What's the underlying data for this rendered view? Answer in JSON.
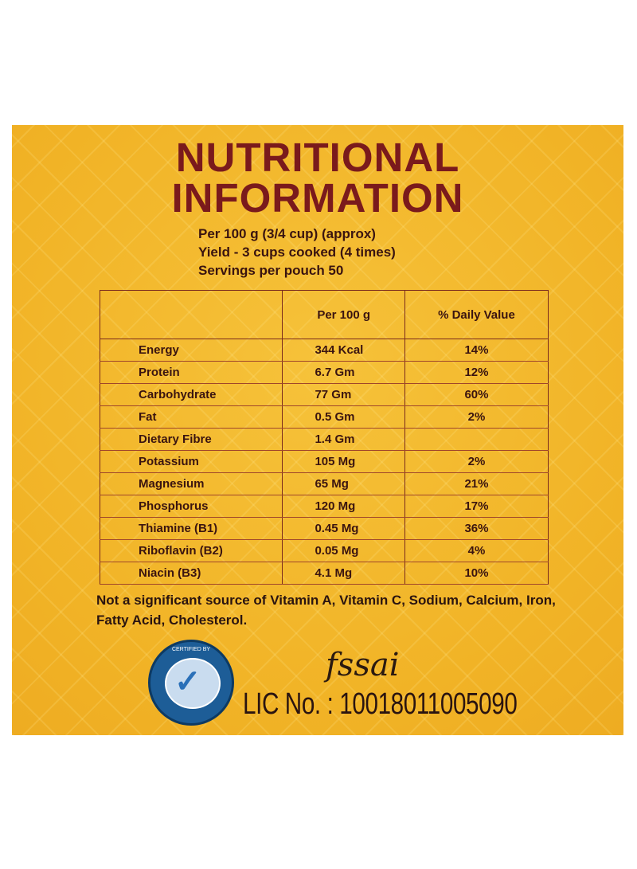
{
  "title_line1": "NUTRITIONAL",
  "title_line2": "INFORMATION",
  "meta": {
    "per": "Per 100 g (3/4 cup) (approx)",
    "yield": "Yield - 3 cups cooked (4 times)",
    "servings": "Servings per pouch 50"
  },
  "table": {
    "headers": [
      "",
      "Per 100 g",
      "% Daily Value"
    ],
    "rows": [
      [
        "Energy",
        "344 Kcal",
        "14%"
      ],
      [
        "Protein",
        "6.7 Gm",
        "12%"
      ],
      [
        "Carbohydrate",
        "77 Gm",
        "60%"
      ],
      [
        "Fat",
        "0.5 Gm",
        "2%"
      ],
      [
        "Dietary Fibre",
        "1.4 Gm",
        ""
      ],
      [
        "Potassium",
        "105 Mg",
        "2%"
      ],
      [
        "Magnesium",
        "65 Mg",
        "21%"
      ],
      [
        "Phosphorus",
        "120 Mg",
        "17%"
      ],
      [
        "Thiamine (B1)",
        "0.45 Mg",
        "36%"
      ],
      [
        "Riboflavin (B2)",
        "0.05 Mg",
        "4%"
      ],
      [
        "Niacin (B3)",
        "4.1 Mg",
        "10%"
      ]
    ]
  },
  "footnote": "Not a significant source of Vitamin A, Vitamin C, Sodium, Calcium, Iron, Fatty Acid, Cholesterol.",
  "badge_text": "CERTIFIED BY",
  "fssai_logo": "fssai",
  "license": "LIC No. : 10018011005090",
  "colors": {
    "background": "#f3b82c",
    "title": "#7a1a1c",
    "border": "#7a2a1c"
  }
}
